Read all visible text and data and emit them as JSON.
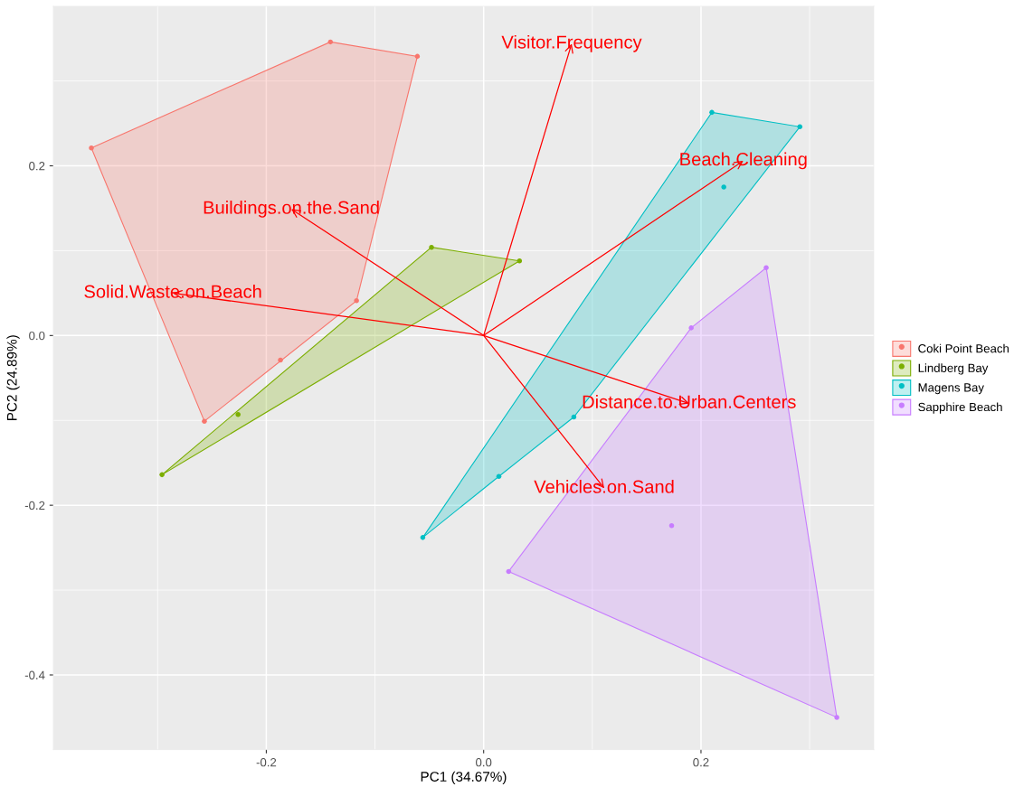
{
  "chart_data": {
    "type": "scatter",
    "xlabel": "PC1 (34.67%)",
    "ylabel": "PC2 (24.89%)",
    "xlim": [
      -0.396,
      0.359
    ],
    "ylim": [
      -0.488,
      0.388
    ],
    "xticks": [
      {
        "value": -0.3,
        "label": null
      },
      -0.2,
      {
        "value": -0.1,
        "label": null
      },
      {
        "value": 0,
        "label": "0.0"
      },
      {
        "value": 0.1,
        "label": null
      },
      0.2,
      {
        "value": 0.3,
        "label": null
      }
    ],
    "yticks": [
      -0.4,
      {
        "value": -0.3,
        "label": null
      },
      -0.2,
      {
        "value": -0.1,
        "label": null
      },
      {
        "value": 0,
        "label": "0.0"
      },
      {
        "value": 0.1,
        "label": null
      },
      0.2,
      {
        "value": 0.3,
        "label": null
      }
    ],
    "grid": true,
    "legend": "right",
    "marker": "circle",
    "series": [
      {
        "type": "area",
        "marker": "none",
        "color": "#f8766d",
        "x": [
          -0.361,
          -0.141,
          -0.061,
          -0.117,
          -0.257
        ],
        "values": [
          0.221,
          0.346,
          0.329,
          0.041,
          -0.101
        ]
      },
      {
        "type": "area",
        "marker": "none",
        "color": "#7cae00",
        "x": [
          -0.296,
          -0.048,
          0.033
        ],
        "values": [
          -0.164,
          0.104,
          0.088
        ]
      },
      {
        "type": "area",
        "marker": "none",
        "color": "#00bfc4",
        "x": [
          -0.056,
          0.014,
          0.083,
          0.291,
          0.21
        ],
        "values": [
          -0.238,
          -0.166,
          -0.096,
          0.246,
          0.263
        ]
      },
      {
        "type": "area",
        "marker": "none",
        "color": "#c77cff",
        "x": [
          0.023,
          0.191,
          0.26,
          0.325
        ],
        "values": [
          -0.278,
          0.009,
          0.08,
          -0.45
        ]
      },
      {
        "name": "Coki Point Beach",
        "color": "#f8766d",
        "x": [
          -0.141,
          -0.061,
          -0.361,
          -0.117,
          -0.187,
          -0.257
        ],
        "values": [
          0.346,
          0.329,
          0.221,
          0.041,
          -0.029,
          -0.101
        ]
      },
      {
        "name": "Lindberg Bay",
        "color": "#7cae00",
        "x": [
          -0.048,
          0.033,
          -0.226,
          -0.296
        ],
        "values": [
          0.104,
          0.088,
          -0.093,
          -0.164
        ]
      },
      {
        "name": "Magens Bay",
        "color": "#00bfc4",
        "x": [
          0.21,
          0.291,
          0.221,
          0.083,
          0.014,
          -0.056
        ],
        "values": [
          0.263,
          0.246,
          0.175,
          -0.096,
          -0.166,
          -0.238
        ]
      },
      {
        "name": "Sapphire Beach",
        "color": "#c77cff",
        "x": [
          0.26,
          0.191,
          0.173,
          0.023,
          0.325
        ],
        "values": [
          0.08,
          0.009,
          -0.224,
          -0.278,
          -0.45
        ]
      },
      {
        "name": "Visitor.Frequency",
        "type": "line",
        "marker": "none",
        "color": "#ff0000",
        "x": [
          0,
          0.081
        ],
        "values": [
          0,
          0.344
        ]
      },
      {
        "name": "Beach.Cleaning",
        "type": "line",
        "marker": "none",
        "color": "#ff0000",
        "x": [
          0,
          0.239
        ],
        "values": [
          0,
          0.206
        ]
      },
      {
        "name": "Buildings.on.the.Sand",
        "type": "line",
        "marker": "none",
        "color": "#ff0000",
        "x": [
          0,
          -0.177
        ],
        "values": [
          0,
          0.149
        ]
      },
      {
        "name": "Solid.Waste.on.Beach",
        "type": "line",
        "marker": "none",
        "color": "#ff0000",
        "x": [
          0,
          -0.286
        ],
        "values": [
          0,
          0.05
        ]
      },
      {
        "name": "Distance.to.Urban.Centers",
        "type": "line",
        "marker": "none",
        "color": "#ff0000",
        "x": [
          0,
          0.189
        ],
        "values": [
          0,
          -0.08
        ]
      },
      {
        "name": "Vehicles.on.Sand",
        "type": "line",
        "marker": "none",
        "color": "#ff0000",
        "x": [
          0,
          0.111
        ],
        "values": [
          0,
          -0.18
        ]
      }
    ]
  }
}
